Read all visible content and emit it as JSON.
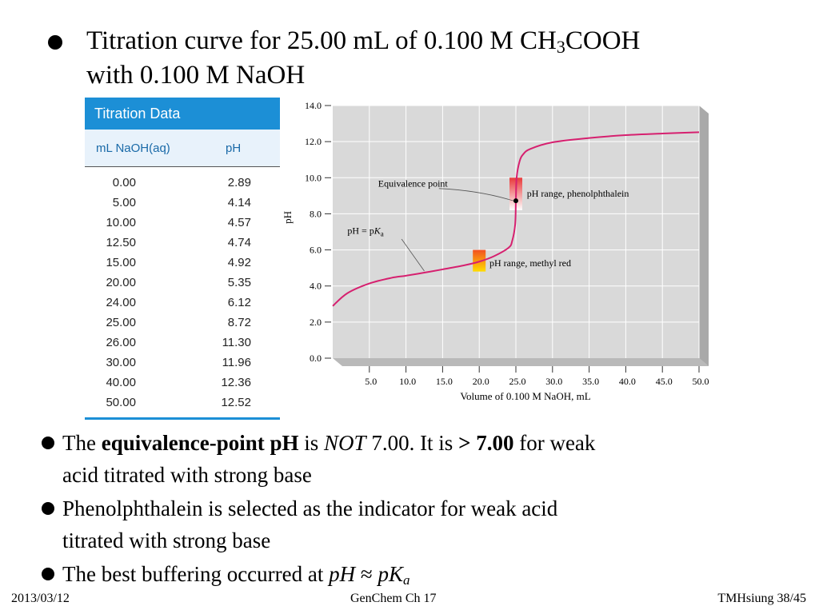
{
  "slide": {
    "title_part1": "Titration curve for  25.00 mL of 0.100 M CH",
    "title_sub": "3",
    "title_part2": "COOH",
    "title_line2": "with 0.100 M NaOH"
  },
  "table": {
    "header": "Titration Data",
    "col1": "mL NaOH(aq)",
    "col2": "pH",
    "rows": [
      [
        "0.00",
        "2.89"
      ],
      [
        "5.00",
        "4.14"
      ],
      [
        "10.00",
        "4.57"
      ],
      [
        "12.50",
        "4.74"
      ],
      [
        "15.00",
        "4.92"
      ],
      [
        "20.00",
        "5.35"
      ],
      [
        "24.00",
        "6.12"
      ],
      [
        "25.00",
        "8.72"
      ],
      [
        "26.00",
        "11.30"
      ],
      [
        "30.00",
        "11.96"
      ],
      [
        "40.00",
        "12.36"
      ],
      [
        "50.00",
        "12.52"
      ]
    ]
  },
  "chart_data": {
    "type": "line",
    "xlabel": "Volume of 0.100 M NaOH, mL",
    "ylabel": "pH",
    "xlim": [
      0,
      50
    ],
    "ylim": [
      0,
      14
    ],
    "grid": true,
    "x_ticks": [
      "5.0",
      "10.0",
      "15.0",
      "20.0",
      "25.0",
      "30.0",
      "35.0",
      "40.0",
      "45.0",
      "50.0"
    ],
    "y_ticks": [
      "0.0",
      "2.0",
      "4.0",
      "6.0",
      "8.0",
      "10.0",
      "12.0",
      "14.0"
    ],
    "curve": {
      "x": [
        0,
        2,
        5,
        8,
        10,
        12.5,
        15,
        18,
        20,
        22,
        24,
        24.5,
        24.9,
        25,
        25.1,
        25.5,
        26,
        27,
        30,
        35,
        40,
        45,
        50
      ],
      "y": [
        2.89,
        3.6,
        4.14,
        4.45,
        4.57,
        4.74,
        4.92,
        5.15,
        5.35,
        5.65,
        6.12,
        6.5,
        7.4,
        8.72,
        10.0,
        10.9,
        11.3,
        11.6,
        11.96,
        12.2,
        12.36,
        12.45,
        12.52
      ]
    },
    "indicators": [
      {
        "label": "pH range, phenolphthalein",
        "x": 25,
        "ph_low": 8.2,
        "ph_high": 10.0
      },
      {
        "label": "pH range, methyl red",
        "x": 20,
        "ph_low": 4.8,
        "ph_high": 6.0
      }
    ],
    "annotations": {
      "equivalence": {
        "label": "Equivalence point",
        "x": 25,
        "y": 8.72
      },
      "pka": {
        "label_prefix": "pH = p",
        "label_K": "K",
        "label_sub": "a",
        "x": 12.5,
        "y": 4.74
      }
    },
    "colors": {
      "plot_bg": "#d9d9d9",
      "curve": "#d6206f",
      "grid": "#ffffff",
      "phenol_top": "#e8393a",
      "phenol_bottom": "#ffffff",
      "methyl_top": "#f25022",
      "methyl_bottom": "#ffdd00"
    }
  },
  "bullets": {
    "b1": {
      "pre": "The ",
      "bold1": "equivalence-point pH",
      "mid1": " is ",
      "italic": "NOT",
      "mid2": " 7.00. It is ",
      "bold2": "> 7.00",
      "post": " for weak",
      "line2": "acid titrated with strong base"
    },
    "b2": {
      "line1": "Phenolphthalein is selected as the indicator for weak acid",
      "line2": "titrated with strong base"
    },
    "b3": {
      "pre": "The best buffering occurred at ",
      "italic1": "pH",
      "mid": " ≈ ",
      "italic2": "pK",
      "sub": "a"
    }
  },
  "footer": {
    "date": "2013/03/12",
    "center": "GenChem Ch 17",
    "right": "TMHsiung 38/45"
  }
}
